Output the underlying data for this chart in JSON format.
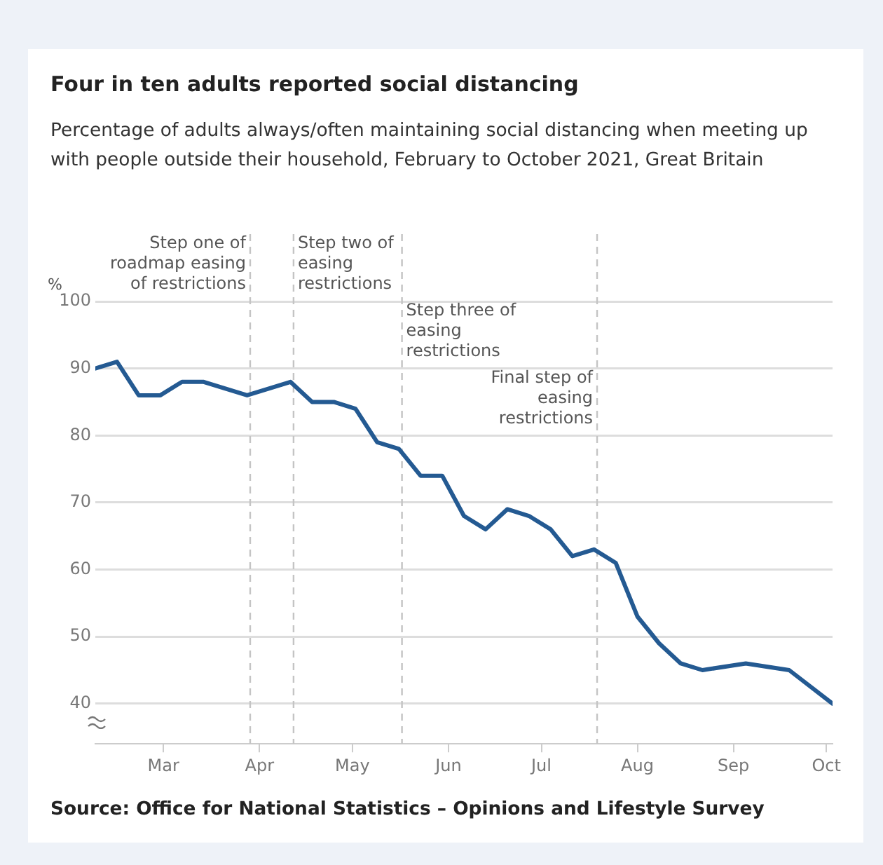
{
  "chart_data": {
    "type": "line",
    "title": "Four in ten adults reported social distancing",
    "subtitle": "Percentage of adults always/often maintaining social distancing when meeting up with people outside their household, February to October 2021, Great Britain",
    "ylabel": "%",
    "x": [
      "2021-02-07",
      "2021-02-14",
      "2021-02-21",
      "2021-02-28",
      "2021-03-07",
      "2021-03-14",
      "2021-03-21",
      "2021-03-28",
      "2021-04-04",
      "2021-04-11",
      "2021-04-18",
      "2021-04-25",
      "2021-05-02",
      "2021-05-09",
      "2021-05-16",
      "2021-05-23",
      "2021-05-30",
      "2021-06-06",
      "2021-06-13",
      "2021-06-20",
      "2021-06-27",
      "2021-07-04",
      "2021-07-11",
      "2021-07-18",
      "2021-07-25",
      "2021-08-01",
      "2021-08-08",
      "2021-08-15",
      "2021-08-22",
      "2021-09-05",
      "2021-09-19",
      "2021-10-03"
    ],
    "series": [
      {
        "color": "#245a92",
        "values": [
          90,
          91,
          86,
          86,
          88,
          88,
          87,
          86,
          87,
          88,
          85,
          85,
          84,
          79,
          78,
          74,
          74,
          68,
          66,
          69,
          68,
          66,
          62,
          63,
          61,
          53,
          49,
          46,
          45,
          46,
          45,
          40
        ]
      }
    ],
    "xlim": [
      "2021-02-07",
      "2021-10-03"
    ],
    "xticks": [
      {
        "value": "2021-03-01",
        "label": "Mar"
      },
      {
        "value": "2021-04-01",
        "label": "Apr"
      },
      {
        "value": "2021-05-01",
        "label": "May"
      },
      {
        "value": "2021-06-01",
        "label": "Jun"
      },
      {
        "value": "2021-07-01",
        "label": "Jul"
      },
      {
        "value": "2021-08-01",
        "label": "Aug"
      },
      {
        "value": "2021-09-01",
        "label": "Sep"
      },
      {
        "value": "2021-10-01",
        "label": "Oct"
      }
    ],
    "ylim": [
      34,
      100
    ],
    "yticks": [
      40,
      50,
      60,
      70,
      80,
      90,
      100
    ],
    "grid": "y",
    "legend": false,
    "marker": "none",
    "line_style": "solid",
    "ref_lines": [
      {
        "axis": "x",
        "value": "2021-03-29",
        "label": "Step one of roadmap easing of restrictions",
        "color": "#c4c4c4",
        "line_style": "dashed"
      },
      {
        "axis": "x",
        "value": "2021-04-12",
        "label": "Step two of easing restrictions",
        "color": "#c4c4c4",
        "line_style": "dashed"
      },
      {
        "axis": "x",
        "value": "2021-05-17",
        "label": "Step three of easing restrictions",
        "color": "#c4c4c4",
        "line_style": "dashed"
      },
      {
        "axis": "x",
        "value": "2021-07-19",
        "label": "Final step of easing restrictions",
        "color": "#c4c4c4",
        "line_style": "dashed"
      }
    ],
    "annotations": [
      "Source: Office for National Statistics – Opinions and Lifestyle Survey"
    ]
  }
}
